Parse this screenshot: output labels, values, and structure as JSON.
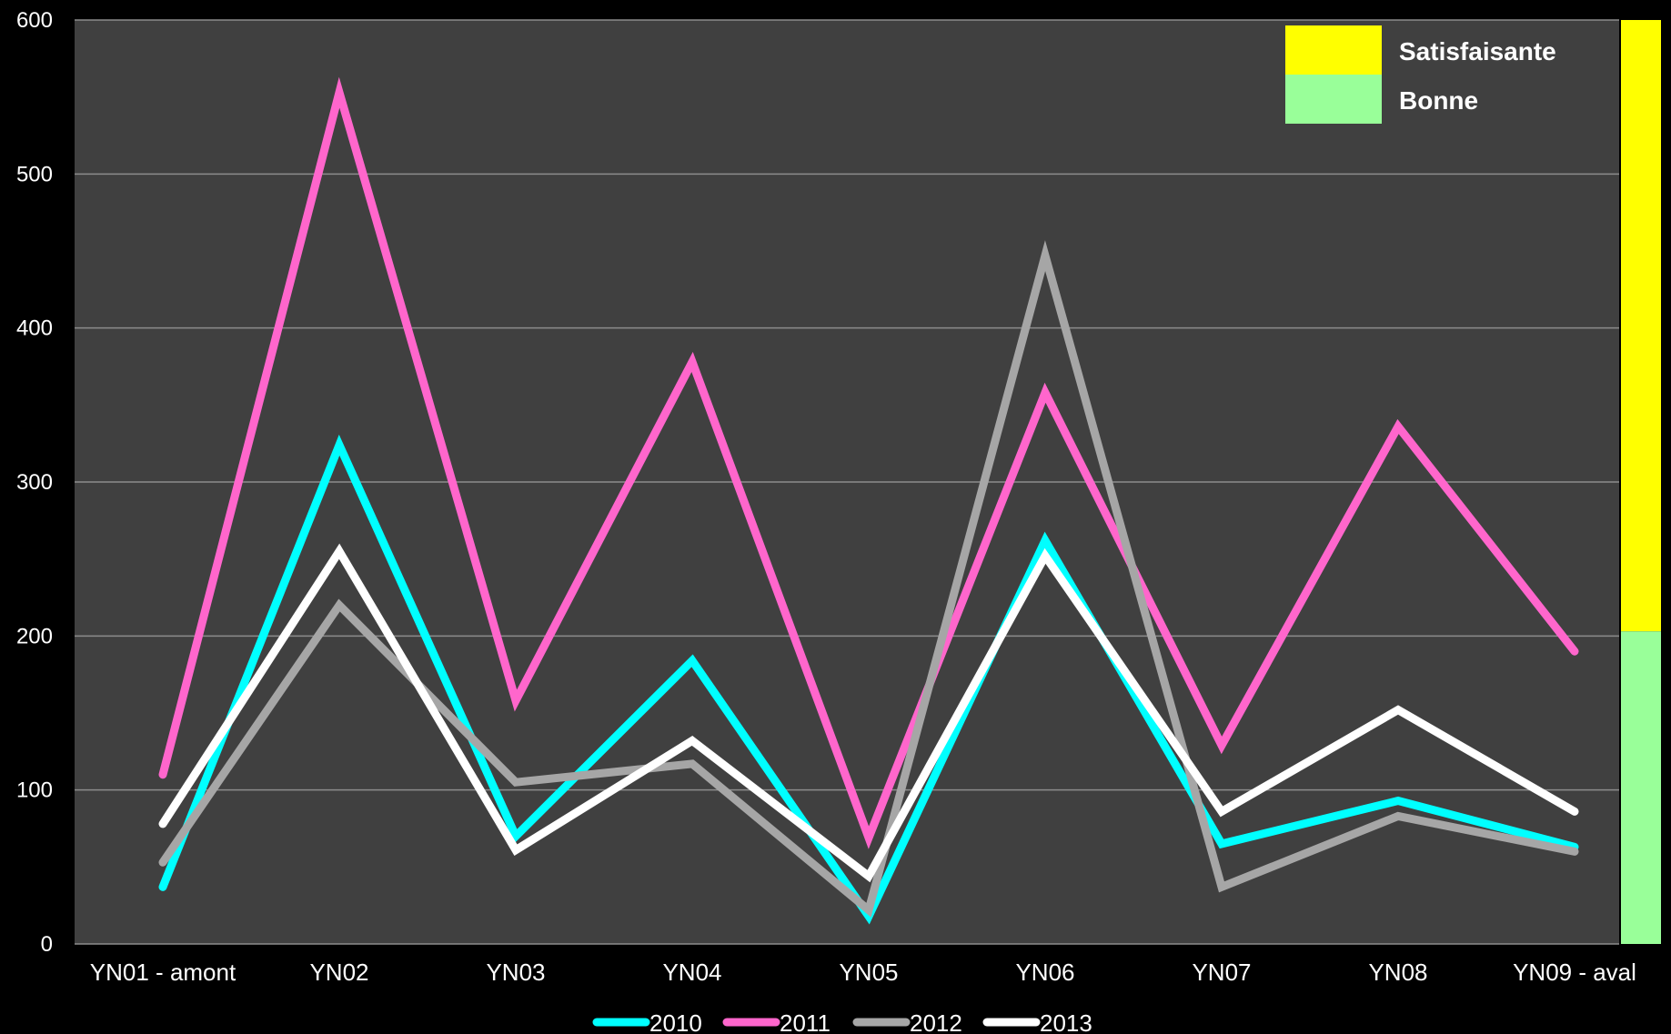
{
  "chart_data": {
    "type": "line",
    "categories": [
      "YN01 - amont",
      "YN02",
      "YN03",
      "YN04",
      "YN05",
      "YN06",
      "YN07",
      "YN08",
      "YN09 - aval"
    ],
    "series": [
      {
        "name": "2010",
        "color": "#00FFFF",
        "values": [
          37,
          324,
          70,
          184,
          18,
          262,
          65,
          93,
          63
        ]
      },
      {
        "name": "2011",
        "color": "#FF66CC",
        "values": [
          110,
          553,
          158,
          378,
          69,
          358,
          129,
          336,
          190
        ]
      },
      {
        "name": "2012",
        "color": "#A6A6A6",
        "values": [
          53,
          220,
          105,
          117,
          22,
          447,
          37,
          83,
          60
        ]
      },
      {
        "name": "2013",
        "color": "#FFFFFF",
        "values": [
          78,
          255,
          61,
          132,
          44,
          252,
          86,
          152,
          86
        ]
      }
    ],
    "ylim": [
      0,
      600
    ],
    "yticks": [
      0,
      100,
      200,
      300,
      400,
      500,
      600
    ],
    "grid": true,
    "legend_position": "bottom",
    "quality_classes": [
      {
        "label": "Satisfaisante",
        "color": "#FFFF00",
        "from": 203,
        "to": 600
      },
      {
        "label": "Bonne",
        "color": "#99FF99",
        "from": 0,
        "to": 203
      }
    ],
    "plot_background": "#404040",
    "page_background": "#000000"
  }
}
